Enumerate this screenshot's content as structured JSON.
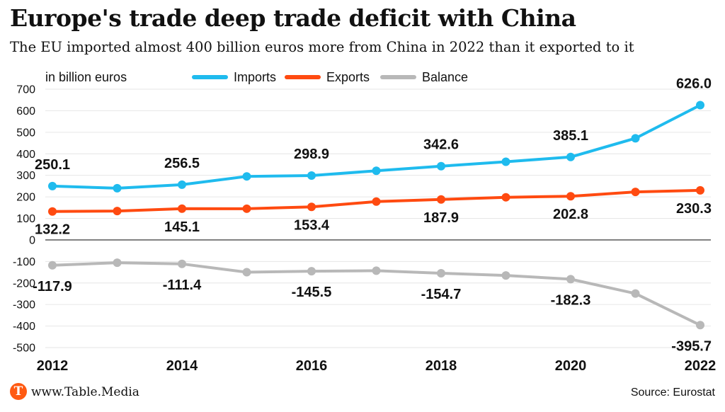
{
  "header": {
    "title": "Europe's trade deep trade deficit with China",
    "subtitle": "The EU imported almost 400 billion euros more from China in 2022 than it exported to it"
  },
  "footer": {
    "logo_letter": "T",
    "site": "www.Table.Media",
    "source": "Source: Eurostat"
  },
  "colors": {
    "imports": "#1fbbee",
    "exports": "#ff4a10",
    "balance": "#b8b8b8"
  },
  "chart_data": {
    "type": "line",
    "unit_label": "in billion euros",
    "x": [
      2012,
      2013,
      2014,
      2015,
      2016,
      2017,
      2018,
      2019,
      2020,
      2021,
      2022
    ],
    "x_tick_labels": [
      "2012",
      "2014",
      "2016",
      "2018",
      "2020",
      "2022"
    ],
    "y_ticks": [
      700,
      600,
      500,
      400,
      300,
      200,
      100,
      0,
      -100,
      -200,
      -300,
      -400,
      -500
    ],
    "ylim": [
      -500,
      700
    ],
    "legend_position": "top",
    "series": [
      {
        "name": "Imports",
        "values": [
          250.1,
          240,
          256.5,
          295,
          298.9,
          321,
          342.6,
          363,
          385.1,
          472,
          626.0
        ],
        "labels": [
          "250.1",
          "",
          "256.5",
          "",
          "298.9",
          "",
          "342.6",
          "",
          "385.1",
          "",
          "626.0"
        ]
      },
      {
        "name": "Exports",
        "values": [
          132.2,
          134,
          145.1,
          145,
          153.4,
          178,
          187.9,
          198,
          202.8,
          223,
          230.3
        ],
        "labels": [
          "132.2",
          "",
          "145.1",
          "",
          "153.4",
          "",
          "187.9",
          "",
          "202.8",
          "",
          "230.3"
        ]
      },
      {
        "name": "Balance",
        "values": [
          -117.9,
          -106,
          -111.4,
          -150,
          -145.5,
          -143,
          -154.7,
          -165,
          -182.3,
          -249,
          -395.7
        ],
        "labels": [
          "-117.9",
          "",
          "-111.4",
          "",
          "-145.5",
          "",
          "-154.7",
          "",
          "-182.3",
          "",
          "-395.7"
        ]
      }
    ]
  }
}
